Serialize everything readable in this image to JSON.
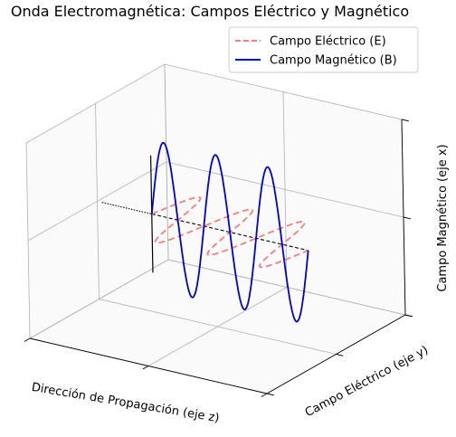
{
  "chart_data": {
    "type": "line",
    "projection": "3d",
    "title": "Onda Electromagnética: Campos Eléctrico y Magnético",
    "xlabel": "Dirección de Propagación (eje z)",
    "ylabel": "Campo Eléctrico (eje y)",
    "zlabel": "Campo Magnético (eje x)",
    "grid": true,
    "legend_position": "top-right",
    "propagation_range": [
      0,
      18.85
    ],
    "amplitude": 1,
    "series": [
      {
        "name": "Campo Eléctrico (E)",
        "component": "y",
        "function": "sin(z)",
        "style": "dashed",
        "color": "#f08080"
      },
      {
        "name": "Campo Magnético (B)",
        "component": "x",
        "function": "sin(z)",
        "style": "solid",
        "color": "#0000cc"
      }
    ]
  }
}
